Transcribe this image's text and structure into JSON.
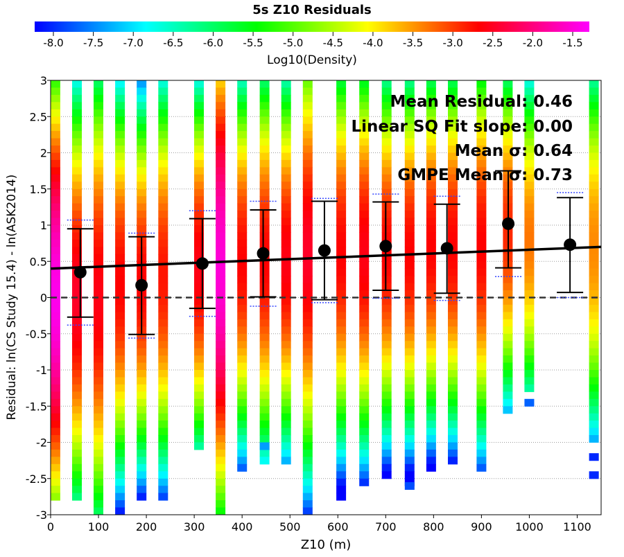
{
  "chart_data": {
    "type": "heatmap",
    "title": "5s Z10 Residuals",
    "xlabel": "Z10 (m)",
    "ylabel": "Residual: ln(CS Study 15.4) - ln(ASK2014)",
    "xlim": [
      0,
      1150
    ],
    "ylim": [
      -3,
      3
    ],
    "x_ticks": [
      "0",
      "100",
      "200",
      "300",
      "400",
      "500",
      "600",
      "700",
      "800",
      "900",
      "1000",
      "1100"
    ],
    "y_ticks": [
      "3",
      "2.5",
      "2",
      "1.5",
      "1",
      "0.5",
      "0",
      "-0.5",
      "-1",
      "-1.5",
      "-2",
      "-2.5",
      "-3"
    ],
    "grid": true,
    "colorbar": {
      "label": "Log10(Density)",
      "range": [
        -8.0,
        -1.5
      ],
      "ticks": [
        "-8.0",
        "-7.5",
        "-7.0",
        "-6.5",
        "-6.0",
        "-5.5",
        "-5.0",
        "-4.5",
        "-4.0",
        "-3.5",
        "-3.0",
        "-2.5",
        "-2.0",
        "-1.5"
      ],
      "colors": [
        "#0000ff",
        "#00ffff",
        "#00ff00",
        "#ffff00",
        "#ff0000",
        "#ff00ff"
      ]
    },
    "annotations": [
      "Mean Residual: 0.46",
      "Linear SQ Fit slope: 0.00",
      "Mean σ: 0.64",
      "GMPE Mean σ: 0.73"
    ],
    "density_columns": [
      {
        "x": 10,
        "peak": 0.0,
        "peak_val": -1.6,
        "ymin": -2.75,
        "ymax": 3.0,
        "spread": 1.8
      },
      {
        "x": 55,
        "peak": 0.0,
        "peak_val": -2.6,
        "ymin": -2.85,
        "ymax": 3.0,
        "spread": 1.7
      },
      {
        "x": 100,
        "peak": 0.0,
        "peak_val": -2.7,
        "ymin": -3.0,
        "ymax": 3.0,
        "spread": 1.9
      },
      {
        "x": 145,
        "peak": 0.2,
        "peak_val": -2.8,
        "ymin": -3.0,
        "ymax": 3.0,
        "spread": 1.6
      },
      {
        "x": 190,
        "peak": 0.2,
        "peak_val": -2.8,
        "ymin": -2.85,
        "ymax": 3.0,
        "spread": 1.5
      },
      {
        "x": 235,
        "peak": 0.3,
        "peak_val": -2.9,
        "ymin": -2.85,
        "ymax": 3.0,
        "spread": 1.6
      },
      {
        "x": 310,
        "peak": 0.4,
        "peak_val": -2.7,
        "ymin": -2.15,
        "ymax": 3.0,
        "spread": 1.5
      },
      {
        "x": 355,
        "peak": 0.4,
        "peak_val": -1.7,
        "ymin": -3.0,
        "ymax": 3.0,
        "spread": 2.0
      },
      {
        "x": 400,
        "peak": 0.5,
        "peak_val": -2.8,
        "ymin": -2.4,
        "ymax": 3.0,
        "spread": 1.5
      },
      {
        "x": 447,
        "peak": 0.5,
        "peak_val": -2.8,
        "ymin": -2.25,
        "ymax": 3.0,
        "spread": 1.6
      },
      {
        "x": 492,
        "peak": 0.5,
        "peak_val": -2.7,
        "ymin": -2.25,
        "ymax": 3.0,
        "spread": 1.5
      },
      {
        "x": 537,
        "peak": 0.6,
        "peak_val": -2.6,
        "ymin": -3.0,
        "ymax": 3.0,
        "spread": 1.8
      },
      {
        "x": 607,
        "peak": 0.6,
        "peak_val": -2.8,
        "ymin": -2.75,
        "ymax": 3.0,
        "spread": 1.6
      },
      {
        "x": 655,
        "peak": 0.6,
        "peak_val": -2.7,
        "ymin": -2.65,
        "ymax": 3.0,
        "spread": 1.6
      },
      {
        "x": 702,
        "peak": 0.6,
        "peak_val": -2.8,
        "ymin": -2.5,
        "ymax": 3.0,
        "spread": 1.5
      },
      {
        "x": 750,
        "peak": 0.6,
        "peak_val": -2.8,
        "ymin": -2.65,
        "ymax": 3.0,
        "spread": 1.5
      },
      {
        "x": 795,
        "peak": 0.7,
        "peak_val": -2.8,
        "ymin": -2.4,
        "ymax": 3.0,
        "spread": 1.5
      },
      {
        "x": 840,
        "peak": 0.7,
        "peak_val": -2.8,
        "ymin": -2.25,
        "ymax": 3.0,
        "spread": 1.5
      },
      {
        "x": 900,
        "peak": 0.7,
        "peak_val": -2.8,
        "ymin": -2.4,
        "ymax": 3.0,
        "spread": 1.6
      },
      {
        "x": 955,
        "peak": 0.9,
        "peak_val": -3.0,
        "ymin": -1.65,
        "ymax": 3.0,
        "spread": 1.4
      },
      {
        "x": 1000,
        "peak": 0.8,
        "peak_val": -3.4,
        "ymin": -1.25,
        "ymax": 3.0,
        "spread": 1.4
      },
      {
        "x": 1135,
        "peak": 0.7,
        "peak_val": -3.5,
        "ymin": -2.05,
        "ymax": 3.0,
        "spread": 1.6
      }
    ],
    "density_fragments": [
      {
        "x": 447,
        "y": -2.05,
        "val": -7.2
      },
      {
        "x": 750,
        "y": -2.6,
        "val": -7.6
      },
      {
        "x": 1000,
        "y": -1.45,
        "val": -7.5
      },
      {
        "x": 1135,
        "y": -2.2,
        "val": -7.8
      },
      {
        "x": 1135,
        "y": -2.45,
        "val": -7.8
      }
    ],
    "binned_means": [
      {
        "x": 62,
        "mean": 0.35,
        "lower": -0.27,
        "upper": 0.95,
        "gmpe_lower": -0.38,
        "gmpe_upper": 1.07
      },
      {
        "x": 190,
        "mean": 0.17,
        "lower": -0.51,
        "upper": 0.84,
        "gmpe_lower": -0.56,
        "gmpe_upper": 0.89
      },
      {
        "x": 317,
        "mean": 0.47,
        "lower": -0.15,
        "upper": 1.09,
        "gmpe_lower": -0.26,
        "gmpe_upper": 1.2
      },
      {
        "x": 444,
        "mean": 0.61,
        "lower": 0.01,
        "upper": 1.21,
        "gmpe_lower": -0.12,
        "gmpe_upper": 1.33
      },
      {
        "x": 572,
        "mean": 0.65,
        "lower": -0.03,
        "upper": 1.33,
        "gmpe_lower": -0.07,
        "gmpe_upper": 1.37
      },
      {
        "x": 700,
        "mean": 0.71,
        "lower": 0.1,
        "upper": 1.32,
        "gmpe_lower": -0.01,
        "gmpe_upper": 1.43
      },
      {
        "x": 828,
        "mean": 0.68,
        "lower": 0.06,
        "upper": 1.29,
        "gmpe_lower": -0.04,
        "gmpe_upper": 1.4
      },
      {
        "x": 956,
        "mean": 1.02,
        "lower": 0.41,
        "upper": 1.75,
        "gmpe_lower": 0.29,
        "gmpe_upper": 1.75
      },
      {
        "x": 1085,
        "mean": 0.73,
        "lower": 0.07,
        "upper": 1.38,
        "gmpe_lower": 0.0,
        "gmpe_upper": 1.45
      }
    ],
    "fit_line": {
      "x": [
        0,
        1150
      ],
      "y": [
        0.4,
        0.7
      ]
    },
    "zero_line": 0
  }
}
